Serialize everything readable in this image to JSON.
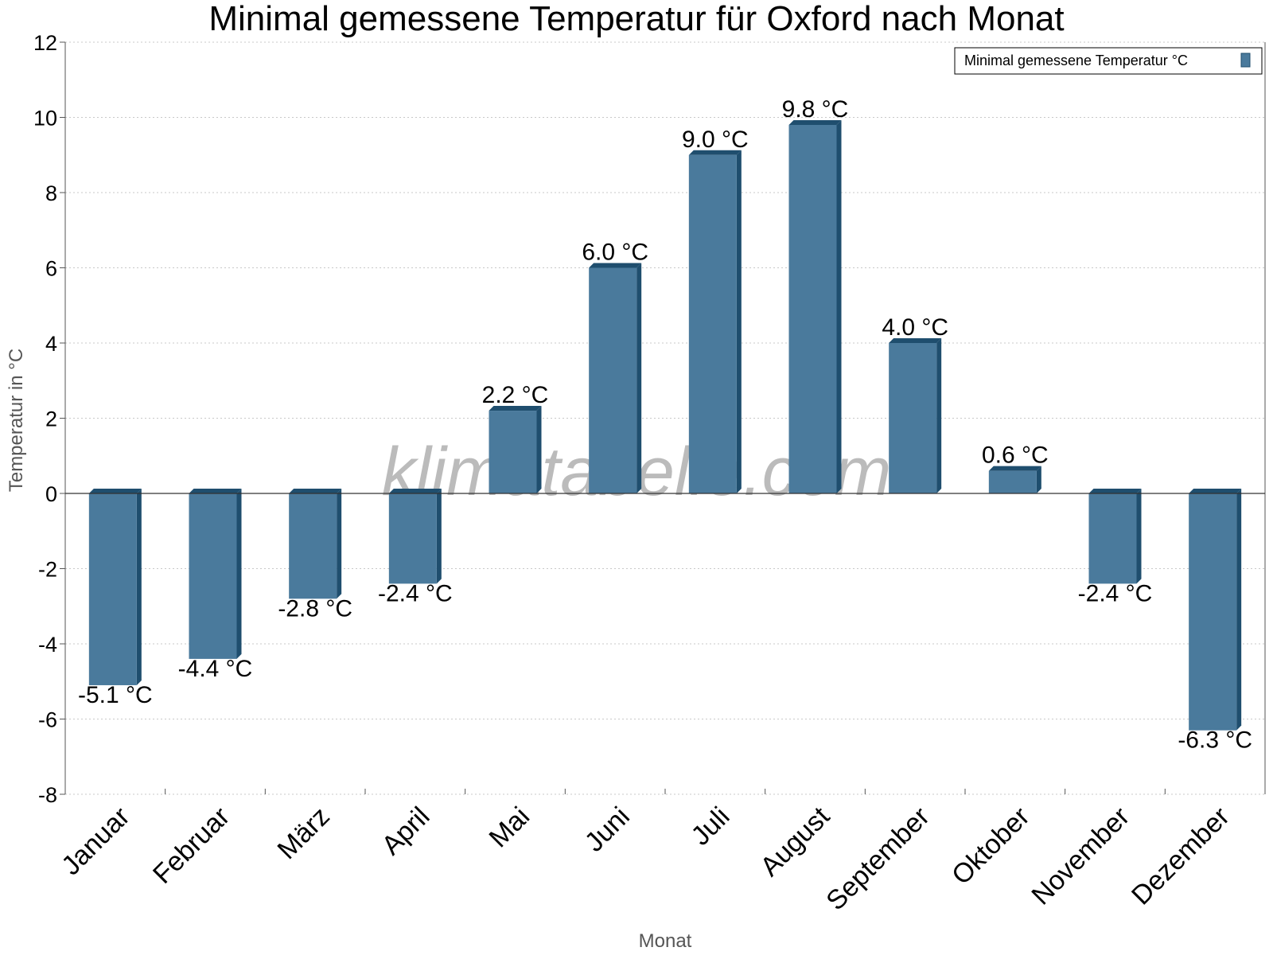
{
  "chart_data": {
    "type": "bar",
    "title": "Minimal gemessene Temperatur für Oxford nach Monat",
    "xlabel": "Monat",
    "ylabel": "Temperatur in °C",
    "ylim": [
      -8,
      12
    ],
    "yticks": [
      -8,
      -6,
      -4,
      -2,
      0,
      2,
      4,
      6,
      8,
      10,
      12
    ],
    "grid": true,
    "legend_position": "top-right",
    "categories": [
      "Januar",
      "Februar",
      "März",
      "April",
      "Mai",
      "Juni",
      "Juli",
      "August",
      "September",
      "Oktober",
      "November",
      "Dezember"
    ],
    "series": [
      {
        "name": "Minimal gemessene Temperatur °C",
        "values": [
          -5.1,
          -4.4,
          -2.8,
          -2.4,
          2.2,
          6.0,
          9.0,
          9.8,
          4.0,
          0.6,
          -2.4,
          -6.3
        ],
        "labels": [
          "-5.1 °C",
          "-4.4 °C",
          "-2.8 °C",
          "-2.4 °C",
          "2.2 °C",
          "6.0 °C",
          "9.0 °C",
          "9.8 °C",
          "4.0 °C",
          "0.6 °C",
          "-2.4 °C",
          "-6.3 °C"
        ],
        "color": "#4a7a9c",
        "side_color": "#1f4e6e"
      }
    ],
    "watermark": "klimatabelle.com"
  }
}
